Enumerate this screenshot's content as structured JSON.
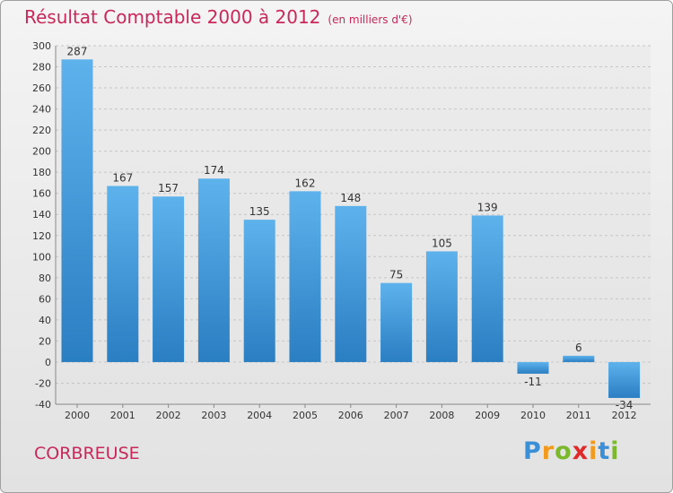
{
  "title": "Résultat Comptable 2000 à 2012",
  "unit_note": "(en milliers d'€)",
  "commune": "CORBREUSE",
  "brand": {
    "letters": [
      "P",
      "r",
      "o",
      "x",
      "i",
      "t",
      "i"
    ],
    "colors": [
      "#3b8fd6",
      "#f29a1e",
      "#7bb82b",
      "#e02a2a",
      "#f29a1e",
      "#3b8fd6",
      "#7bb82b"
    ]
  },
  "colors": {
    "title": "#c8285a",
    "bar_light": "#5eb2ec",
    "bar_dark": "#2a7ec2"
  },
  "chart_data": {
    "type": "bar",
    "categories": [
      "2000",
      "2001",
      "2002",
      "2003",
      "2004",
      "2005",
      "2006",
      "2007",
      "2008",
      "2009",
      "2010",
      "2011",
      "2012"
    ],
    "values": [
      287,
      167,
      157,
      174,
      135,
      162,
      148,
      75,
      105,
      139,
      -11,
      6,
      -34
    ],
    "value_labels": [
      "287",
      "167",
      "157",
      "174",
      "135",
      "162",
      "148",
      "75",
      "105",
      "139",
      "-11",
      "6",
      "-34"
    ],
    "y_ticks": [
      "-40",
      "-20",
      "0",
      "20",
      "40",
      "60",
      "80",
      "100",
      "120",
      "140",
      "160",
      "180",
      "200",
      "220",
      "240",
      "260",
      "280",
      "300"
    ],
    "ylim": [
      -40,
      300
    ],
    "grid": "horizontal dashed",
    "legend": "none"
  }
}
